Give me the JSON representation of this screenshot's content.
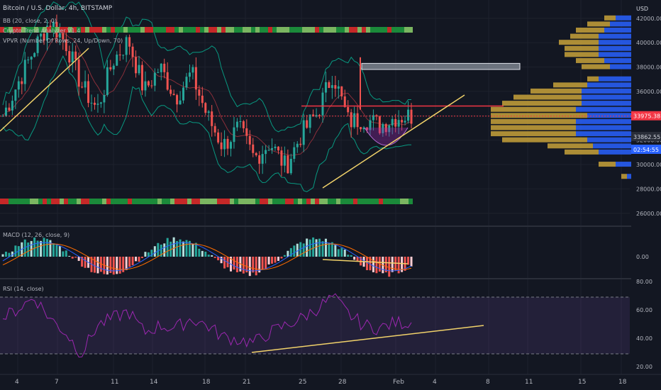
{
  "header": {
    "symbol_line": "Bitcoin / U.S. Dollar, 4h, BITSTAMP",
    "indicators": [
      "BB (20, close, 2, 0)",
      "Crypto Trend Analyzer V1.4",
      "VPVR (Number Of Rows, 24, Up/Down, 70)"
    ],
    "currency": "USD",
    "currency_prefix": "4·"
  },
  "price_tags": {
    "last": "33975.38",
    "second": "33862.55",
    "countdown": "02:54:55"
  },
  "panes": {
    "macd_title": "MACD (12, 26, close, 9)",
    "rsi_title": "RSI (14, close)"
  },
  "colors": {
    "background": "#131722",
    "bull": "#26a69a",
    "bear": "#ef5350",
    "bb": "#089981",
    "trendline": "#f1d26a",
    "resistance": "#f23645",
    "rsi": "#9c27b0",
    "vp_up": "#2962ff",
    "vp_down": "#c8a23a"
  },
  "chart_data": {
    "type": "candlestick",
    "title": "Bitcoin / U.S. Dollar, 4h, BITSTAMP",
    "x_ticks": [
      "4",
      "7",
      "11",
      "14",
      "18",
      "21",
      "25",
      "28",
      "Feb",
      "4",
      "8",
      "11",
      "15",
      "18"
    ],
    "price_axis": {
      "ticks": [
        "42000.00",
        "40000.00",
        "38000.00",
        "36000.00",
        "34000.00",
        "32000.00",
        "30000.00",
        "28000.00",
        "26000.00"
      ],
      "ylim": [
        25000,
        43500
      ]
    },
    "macd_axis": {
      "ticks": [
        "0.00"
      ]
    },
    "rsi_axis": {
      "ticks": [
        "80.00",
        "60.00",
        "40.00",
        "20.00"
      ],
      "bands": [
        30,
        70
      ]
    },
    "price_path": [
      34000,
      36800,
      39500,
      41800,
      40000,
      36500,
      34500,
      38500,
      40200,
      36000,
      38000,
      35500,
      37500,
      34000,
      31500,
      33000,
      30500,
      31800,
      29800,
      32500,
      34200,
      37500,
      33500,
      33800,
      33200,
      33900,
      34000
    ],
    "last_price": 33975.38,
    "resistance_level": 34800,
    "zone": [
      37800,
      38300
    ],
    "volume_profile": [
      {
        "price": 42000,
        "up": 0.15,
        "down": 0.1
      },
      {
        "price": 41500,
        "up": 0.2,
        "down": 0.2
      },
      {
        "price": 41000,
        "up": 0.25,
        "down": 0.25
      },
      {
        "price": 40500,
        "up": 0.3,
        "down": 0.25
      },
      {
        "price": 40000,
        "up": 0.3,
        "down": 0.35
      },
      {
        "price": 39500,
        "up": 0.3,
        "down": 0.3
      },
      {
        "price": 39000,
        "up": 0.3,
        "down": 0.3
      },
      {
        "price": 38500,
        "up": 0.25,
        "down": 0.25
      },
      {
        "price": 38000,
        "up": 0.2,
        "down": 0.25
      },
      {
        "price": 37000,
        "up": 0.3,
        "down": 0.1
      },
      {
        "price": 36500,
        "up": 0.4,
        "down": 0.3
      },
      {
        "price": 36000,
        "up": 0.45,
        "down": 0.45
      },
      {
        "price": 35500,
        "up": 0.45,
        "down": 0.6
      },
      {
        "price": 35000,
        "up": 0.45,
        "down": 0.7
      },
      {
        "price": 34500,
        "up": 0.5,
        "down": 0.75
      },
      {
        "price": 34000,
        "up": 0.4,
        "down": 0.85
      },
      {
        "price": 33500,
        "up": 0.5,
        "down": 0.75
      },
      {
        "price": 33000,
        "up": 0.5,
        "down": 0.75
      },
      {
        "price": 32500,
        "up": 0.5,
        "down": 0.75
      },
      {
        "price": 32000,
        "up": 0.4,
        "down": 0.75
      },
      {
        "price": 31500,
        "up": 0.35,
        "down": 0.4
      },
      {
        "price": 31000,
        "up": 0.3,
        "down": 0.3
      },
      {
        "price": 30000,
        "up": 0.15,
        "down": 0.15
      },
      {
        "price": 29000,
        "up": 0.05,
        "down": 0.05
      }
    ],
    "rsi_path": [
      55,
      62,
      70,
      55,
      45,
      30,
      50,
      55,
      60,
      45,
      50,
      48,
      55,
      50,
      42,
      40,
      38,
      45,
      50,
      55,
      62,
      70,
      58,
      50,
      48,
      52,
      52
    ]
  }
}
